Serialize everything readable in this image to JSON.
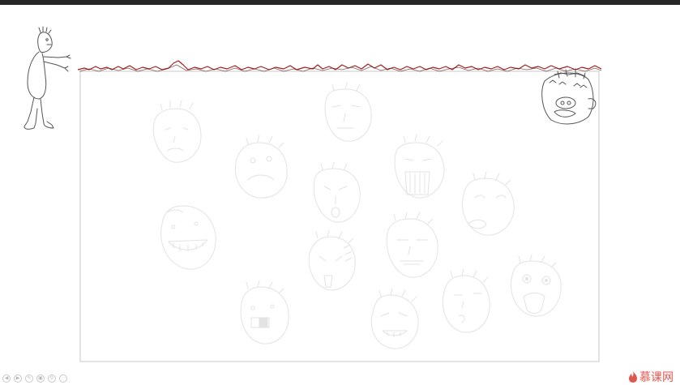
{
  "slide": {
    "frame_color": "#c8c8c8",
    "sketch_color": "#e3e3e3",
    "wall_top_color": "#a32020",
    "character_color": "#555555"
  },
  "controls": [
    {
      "icon": "previous-icon"
    },
    {
      "icon": "next-icon"
    },
    {
      "icon": "pen-icon"
    },
    {
      "icon": "slides-icon"
    },
    {
      "icon": "zoom-icon"
    },
    {
      "icon": "more-icon"
    }
  ],
  "watermark": {
    "text": "慕课网",
    "color": "#e0574e"
  }
}
